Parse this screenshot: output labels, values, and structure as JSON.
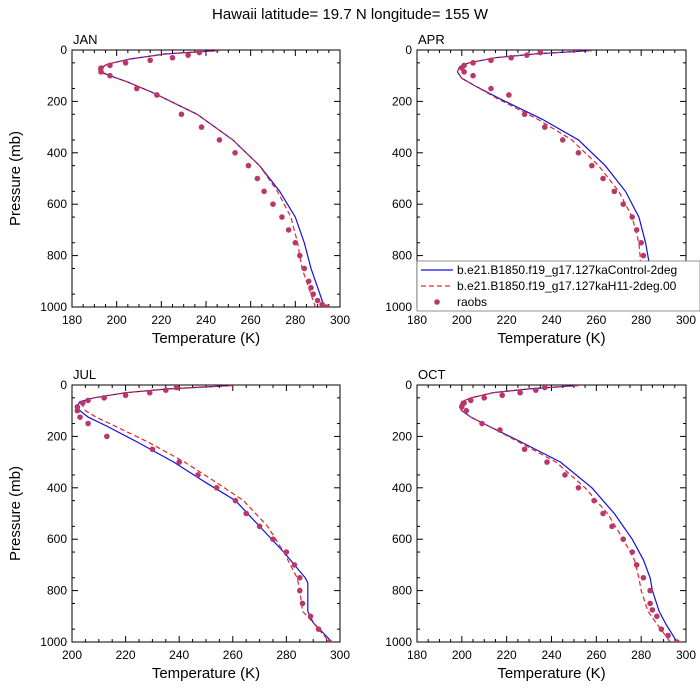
{
  "figure": {
    "title": "Hawaii  latitude= 19.7 N longitude= 155 W"
  },
  "colors": {
    "control": "#1010e6",
    "experiment": "#e32626",
    "raobs": "#b8386a"
  },
  "legend": {
    "entries": [
      "b.e21.B1850.f19_g17.127kaControl-2deg",
      "b.e21.B1850.f19_g17.127kaH11-2deg.00",
      "raobs"
    ]
  },
  "chart_data": [
    {
      "type": "line",
      "title": "JAN",
      "xlabel": "Temperature (K)",
      "ylabel": "Pressure (mb)",
      "xlim": [
        180,
        300
      ],
      "ylim": [
        1000,
        0
      ],
      "x_ticks": [
        180,
        200,
        220,
        240,
        260,
        280,
        300
      ],
      "y_ticks": [
        0,
        200,
        400,
        600,
        800,
        1000
      ],
      "series": [
        {
          "name": "b.e21.B1850.f19_g17.127kaControl-2deg",
          "style": "solid",
          "x": [
            246,
            222,
            206,
            196,
            193,
            193,
            197,
            205,
            216,
            236,
            252,
            264,
            273,
            280,
            284,
            287,
            290,
            293
          ],
          "y": [
            2,
            15,
            35,
            55,
            70,
            85,
            100,
            125,
            165,
            250,
            350,
            450,
            550,
            650,
            750,
            850,
            925,
            1000
          ]
        },
        {
          "name": "b.e21.B1850.f19_g17.127kaH11-2deg.00",
          "style": "dashed",
          "x": [
            246,
            222,
            206,
            196,
            192,
            192,
            197,
            205,
            216,
            236,
            252,
            264,
            272,
            278,
            281,
            283,
            286,
            289
          ],
          "y": [
            2,
            15,
            35,
            55,
            70,
            85,
            100,
            125,
            165,
            250,
            350,
            450,
            550,
            650,
            750,
            850,
            925,
            1000
          ]
        },
        {
          "name": "raobs",
          "style": "points",
          "x": [
            237,
            232,
            225,
            215,
            204,
            197,
            193,
            193,
            197,
            209,
            218,
            229,
            238,
            246,
            253,
            259,
            263,
            266,
            270,
            274,
            277,
            280,
            282,
            284,
            286,
            287,
            288,
            290,
            292,
            294
          ],
          "y": [
            10,
            20,
            30,
            40,
            50,
            60,
            70,
            85,
            100,
            150,
            175,
            250,
            300,
            350,
            400,
            450,
            500,
            550,
            600,
            650,
            700,
            750,
            800,
            850,
            900,
            925,
            950,
            975,
            990,
            1000
          ]
        }
      ]
    },
    {
      "type": "line",
      "title": "APR",
      "xlabel": "Temperature (K)",
      "ylabel": "",
      "xlim": [
        180,
        300
      ],
      "ylim": [
        1000,
        0
      ],
      "x_ticks": [
        180,
        200,
        220,
        240,
        260,
        280,
        300
      ],
      "y_ticks": [
        0,
        200,
        400,
        600,
        800,
        1000
      ],
      "series": [
        {
          "name": "b.e21.B1850.f19_g17.127kaControl-2deg",
          "style": "solid",
          "x": [
            258,
            233,
            215,
            203,
            199,
            198,
            200,
            206,
            217,
            236,
            252,
            264,
            273,
            279,
            282,
            284,
            288,
            293
          ],
          "y": [
            2,
            15,
            30,
            50,
            65,
            85,
            110,
            140,
            190,
            270,
            350,
            450,
            550,
            650,
            750,
            850,
            925,
            1000
          ]
        },
        {
          "name": "b.e21.B1850.f19_g17.127kaH11-2deg.00",
          "style": "dashed",
          "x": [
            258,
            233,
            215,
            203,
            199,
            198,
            200,
            206,
            216,
            234,
            249,
            261,
            270,
            276,
            279,
            280,
            284,
            290
          ],
          "y": [
            2,
            15,
            30,
            50,
            65,
            85,
            110,
            140,
            190,
            270,
            350,
            450,
            550,
            650,
            750,
            850,
            925,
            1000
          ]
        },
        {
          "name": "raobs",
          "style": "points",
          "x": [
            235,
            229,
            222,
            213,
            205,
            201,
            200,
            201,
            205,
            213,
            221,
            228,
            237,
            245,
            252,
            258,
            263,
            268,
            272,
            276,
            278,
            280,
            281,
            283,
            286,
            289,
            292,
            294
          ],
          "y": [
            10,
            20,
            30,
            40,
            50,
            60,
            70,
            85,
            100,
            150,
            175,
            250,
            300,
            350,
            400,
            450,
            500,
            550,
            600,
            650,
            700,
            750,
            800,
            850,
            900,
            925,
            975,
            1000
          ]
        }
      ]
    },
    {
      "type": "line",
      "title": "JUL",
      "xlabel": "Temperature (K)",
      "ylabel": "Pressure (mb)",
      "xlim": [
        200,
        300
      ],
      "ylim": [
        1000,
        0
      ],
      "x_ticks": [
        200,
        220,
        240,
        260,
        280,
        300
      ],
      "y_ticks": [
        0,
        200,
        400,
        600,
        800,
        1000
      ],
      "series": [
        {
          "name": "b.e21.B1850.f19_g17.127kaControl-2deg",
          "style": "solid",
          "x": [
            260,
            236,
            220,
            208,
            203,
            202,
            203,
            206,
            213,
            224,
            238,
            250,
            261,
            270,
            279,
            287,
            288,
            288,
            290,
            297
          ],
          "y": [
            2,
            15,
            30,
            50,
            65,
            80,
            100,
            125,
            160,
            220,
            300,
            380,
            450,
            550,
            650,
            750,
            770,
            880,
            925,
            1000
          ]
        },
        {
          "name": "b.e21.B1850.f19_g17.127kaH11-2deg.00",
          "style": "dashed",
          "x": [
            260,
            236,
            220,
            208,
            204,
            204,
            205,
            209,
            216,
            228,
            242,
            254,
            264,
            273,
            279,
            284,
            285,
            286,
            290,
            296
          ],
          "y": [
            2,
            15,
            30,
            50,
            65,
            80,
            100,
            125,
            160,
            220,
            300,
            380,
            450,
            550,
            650,
            750,
            800,
            880,
            925,
            1000
          ]
        },
        {
          "name": "raobs",
          "style": "points",
          "x": [
            239,
            235,
            229,
            220,
            212,
            206,
            204,
            202,
            202,
            203,
            206,
            213,
            230,
            240,
            247,
            254,
            261,
            265,
            270,
            275,
            280,
            283,
            285,
            285,
            286,
            289,
            292,
            296
          ],
          "y": [
            10,
            20,
            30,
            40,
            50,
            60,
            70,
            85,
            100,
            125,
            150,
            200,
            250,
            300,
            350,
            400,
            450,
            500,
            550,
            600,
            650,
            700,
            750,
            800,
            850,
            900,
            950,
            1000
          ]
        }
      ]
    },
    {
      "type": "line",
      "title": "OCT",
      "xlabel": "Temperature (K)",
      "ylabel": "",
      "xlim": [
        180,
        300
      ],
      "ylim": [
        1000,
        0
      ],
      "x_ticks": [
        180,
        200,
        220,
        240,
        260,
        280,
        300
      ],
      "y_ticks": [
        0,
        200,
        400,
        600,
        800,
        1000
      ],
      "series": [
        {
          "name": "b.e21.B1850.f19_g17.127kaControl-2deg",
          "style": "solid",
          "x": [
            252,
            230,
            214,
            204,
            200,
            199,
            200,
            204,
            212,
            226,
            244,
            258,
            268,
            276,
            281,
            284,
            285,
            288,
            291,
            296
          ],
          "y": [
            2,
            15,
            30,
            50,
            65,
            85,
            100,
            125,
            160,
            220,
            300,
            400,
            500,
            600,
            680,
            750,
            800,
            880,
            930,
            1000
          ]
        },
        {
          "name": "b.e21.B1850.f19_g17.127kaH11-2deg.00",
          "style": "dashed",
          "x": [
            252,
            230,
            214,
            204,
            200,
            199,
            200,
            204,
            212,
            225,
            242,
            255,
            265,
            272,
            277,
            279,
            280,
            283,
            287,
            293
          ],
          "y": [
            2,
            15,
            30,
            50,
            65,
            85,
            100,
            125,
            160,
            220,
            300,
            400,
            500,
            600,
            680,
            750,
            800,
            880,
            930,
            1000
          ]
        },
        {
          "name": "raobs",
          "style": "points",
          "x": [
            237,
            233,
            226,
            218,
            210,
            204,
            201,
            200,
            202,
            209,
            217,
            228,
            238,
            246,
            252,
            259,
            263,
            267,
            272,
            276,
            278,
            281,
            284,
            284,
            285,
            287,
            289,
            292,
            296
          ],
          "y": [
            10,
            20,
            30,
            40,
            50,
            60,
            70,
            85,
            100,
            150,
            175,
            250,
            300,
            350,
            400,
            450,
            500,
            550,
            600,
            650,
            700,
            750,
            800,
            850,
            875,
            900,
            950,
            975,
            1000
          ]
        }
      ]
    }
  ]
}
